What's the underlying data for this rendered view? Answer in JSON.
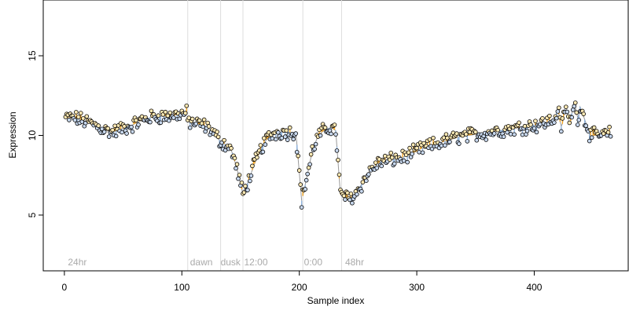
{
  "chart_data": {
    "type": "scatter",
    "title": "",
    "xlabel": "Sample index",
    "ylabel": "Expression",
    "xlim": [
      -18,
      480
    ],
    "ylim": [
      1.5,
      18.5
    ],
    "x_ticks": [
      0,
      100,
      200,
      300,
      400
    ],
    "y_ticks": [
      5,
      10,
      15
    ],
    "grid": false,
    "point_style": "open circles with black outline, filled light yellow or light blue",
    "fit_colors": {
      "above": "#f5a623",
      "below": "#8fb3de",
      "fit_line": "#999999"
    },
    "point_fill_colors": [
      "#fde9b4",
      "#c8d8ee"
    ],
    "vertical_lines": [
      105,
      133,
      152,
      203,
      236
    ],
    "region_labels": [
      {
        "text": "24hr",
        "x": 3
      },
      {
        "text": "dawn",
        "x": 107
      },
      {
        "text": "dusk",
        "x": 133
      },
      {
        "text": "12:00",
        "x": 153
      },
      {
        "text": "0:00",
        "x": 204
      },
      {
        "text": "48hr",
        "x": 239
      }
    ],
    "segments": [
      {
        "x0": 1,
        "x1": 104,
        "y": [
          11.1,
          11.1,
          10.9,
          10.7,
          10.4,
          10.2,
          10.4,
          10.6,
          10.9,
          11.1,
          11.2,
          11.2,
          11.3,
          11.4
        ]
      },
      {
        "x0": 105,
        "x1": 152,
        "y": [
          10.9,
          10.8,
          10.7,
          10.6,
          10.4,
          10.0,
          9.6,
          9.4,
          9.0,
          7.8,
          6.3
        ]
      },
      {
        "x0": 153,
        "x1": 202,
        "y": [
          6.4,
          7.4,
          8.4,
          9.2,
          9.8,
          10.1,
          10.2,
          10.2,
          10.2,
          10.2,
          5.9
        ]
      },
      {
        "x0": 203,
        "x1": 235,
        "y": [
          6.2,
          7.6,
          9.0,
          9.8,
          10.2,
          10.4,
          10.5,
          10.3,
          6.3
        ]
      },
      {
        "x0": 236,
        "x1": 300,
        "y": [
          6.3,
          6.0,
          6.4,
          7.2,
          7.9,
          8.3,
          8.4,
          8.5,
          8.6,
          8.8,
          9.0
        ]
      },
      {
        "x0": 301,
        "x1": 465,
        "y": [
          9.1,
          9.3,
          9.5,
          9.7,
          9.9,
          10.0,
          10.1,
          10.2,
          10.3,
          10.4,
          10.5,
          10.6,
          10.7,
          10.9,
          11.1,
          11.3,
          11.8,
          10.0,
          10.0,
          10.1
        ]
      }
    ],
    "noise_amplitude": 0.38,
    "oscillations": [
      {
        "x0": 418,
        "x1": 438,
        "amplitude": 0.55,
        "period": 7
      }
    ]
  }
}
